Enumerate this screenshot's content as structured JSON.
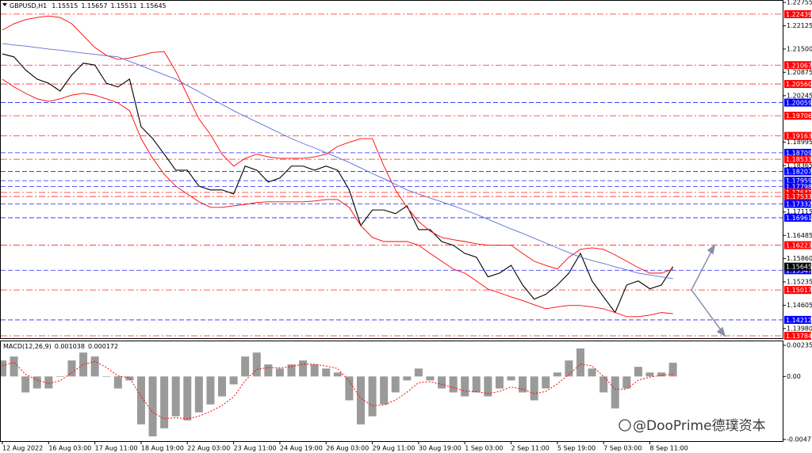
{
  "chart_data": [
    {
      "type": "line",
      "title": "GBPUSD,H1",
      "ohlc": {
        "open": 1.15515,
        "high": 1.15657,
        "low": 1.15511
      },
      "categories": [
        "12 Aug 2022",
        null,
        null,
        null,
        "16 Aug 03:00",
        null,
        null,
        null,
        "17 Aug 11:00",
        null,
        null,
        null,
        "18 Aug 19:00",
        null,
        null,
        null,
        "22 Aug 03:00",
        null,
        null,
        null,
        "23 Aug 11:00",
        null,
        null,
        null,
        "24 Aug 19:00",
        null,
        null,
        null,
        "26 Aug 03:00",
        null,
        null,
        null,
        "29 Aug 11:00",
        null,
        null,
        null,
        "30 Aug 19:00",
        null,
        null,
        null,
        "1 Sep 03:00",
        null,
        null,
        null,
        "2 Sep 11:00",
        null,
        null,
        null,
        "5 Sep 19:00",
        null,
        null,
        null,
        "7 Sep 03:00",
        null,
        null,
        null,
        "8 Sep 11:00",
        null,
        null
      ],
      "series": [
        {
          "color": "#000000",
          "values": [
            1.2137,
            1.2129,
            1.2094,
            1.2069,
            1.2058,
            1.2037,
            1.208,
            1.2112,
            1.2107,
            1.2058,
            1.2048,
            1.2069,
            1.1941,
            1.1909,
            1.1867,
            1.1824,
            1.1824,
            1.1781,
            1.1771,
            1.1771,
            1.176,
            1.1835,
            1.1824,
            1.1792,
            1.1803,
            1.1835,
            1.1835,
            1.1824,
            1.1835,
            1.1824,
            1.1771,
            1.1675,
            1.1717,
            1.1717,
            1.1707,
            1.1728,
            1.1664,
            1.1664,
            1.1632,
            1.1622,
            1.16,
            1.159,
            1.1537,
            1.1547,
            1.1568,
            1.1515,
            1.1477,
            1.149,
            1.1515,
            1.1547,
            1.16,
            1.1526,
            1.1483,
            1.1441,
            1.1515,
            1.1526,
            1.1505,
            1.1515,
            1.15645
          ]
        },
        {
          "color": "#ff0000",
          "values": [
            1.2201,
            1.2218,
            1.2229,
            1.2235,
            1.2239,
            1.2235,
            1.2218,
            1.2186,
            1.2154,
            1.2133,
            1.2122,
            1.2126,
            1.2133,
            1.2141,
            1.2143,
            1.209,
            1.2026,
            1.1962,
            1.192,
            1.1867,
            1.1835,
            1.1856,
            1.1867,
            1.186,
            1.1856,
            1.1856,
            1.1856,
            1.186,
            1.1867,
            1.1888,
            1.1899,
            1.1909,
            1.1909,
            1.1835,
            1.1771,
            1.1724,
            1.1686,
            1.166,
            1.1643,
            1.1637,
            1.1632,
            1.1626,
            1.1622,
            1.1622,
            1.1622,
            1.16,
            1.1579,
            1.1568,
            1.1558,
            1.159,
            1.1611,
            1.1615,
            1.1611,
            1.1596,
            1.1579,
            1.1562,
            1.1547,
            1.1547,
            1.1558
          ]
        },
        {
          "color": "#ff0000",
          "values": [
            1.2069,
            1.2048,
            1.2031,
            1.2016,
            1.2009,
            1.2016,
            1.2026,
            1.2031,
            1.2026,
            1.2016,
            1.2005,
            1.1984,
            1.1909,
            1.1856,
            1.1813,
            1.1781,
            1.176,
            1.1739,
            1.1724,
            1.1724,
            1.1728,
            1.1732,
            1.1737,
            1.1739,
            1.1739,
            1.1739,
            1.1739,
            1.1741,
            1.1745,
            1.1745,
            1.1724,
            1.1675,
            1.1643,
            1.1632,
            1.1632,
            1.1632,
            1.1622,
            1.16,
            1.1579,
            1.1558,
            1.1547,
            1.1526,
            1.1504,
            1.1494,
            1.1483,
            1.1473,
            1.1462,
            1.1451,
            1.1456,
            1.146,
            1.146,
            1.1456,
            1.1451,
            1.1441,
            1.143,
            1.143,
            1.1434,
            1.1441,
            1.1438
          ]
        },
        {
          "color": "#5b6fd6",
          "values": [
            1.2165,
            1.2161,
            1.2158,
            1.2154,
            1.215,
            1.2147,
            1.2143,
            1.2139,
            1.2136,
            1.2132,
            1.2129,
            1.2117,
            1.2105,
            1.2093,
            1.2081,
            1.2069,
            1.2052,
            1.2035,
            1.2018,
            1.2001,
            1.1984,
            1.1969,
            1.1954,
            1.1939,
            1.1924,
            1.1909,
            1.1896,
            1.1884,
            1.1871,
            1.1858,
            1.1845,
            1.183,
            1.1815,
            1.1801,
            1.1786,
            1.1771,
            1.176,
            1.1749,
            1.1739,
            1.1728,
            1.1717,
            1.1705,
            1.1692,
            1.1679,
            1.1666,
            1.1654,
            1.1641,
            1.1628,
            1.1615,
            1.1602,
            1.159,
            1.1581,
            1.1573,
            1.1564,
            1.1556,
            1.1547,
            1.1542,
            1.1537,
            1.1532
          ]
        }
      ],
      "levels": [
        {
          "value": 1.22439,
          "color": "#ff0000"
        },
        {
          "value": 1.21067,
          "color": "#ff0000"
        },
        {
          "value": 1.2056,
          "label": "1.20560",
          "color": "#ff0000"
        },
        {
          "value": 1.20059,
          "color": "#0000ff"
        },
        {
          "value": 1.19706,
          "color": "#ff0000"
        },
        {
          "value": 1.19163,
          "color": "#ff0000"
        },
        {
          "value": 1.18709,
          "color": "#0000ff"
        },
        {
          "value": 1.18533,
          "color": "#ff0000"
        },
        {
          "value": 1.18207,
          "color": "#0000ff"
        },
        {
          "value": 1.17959,
          "color": "#0000ff"
        },
        {
          "value": 1.17798,
          "color": "#0000ff"
        },
        {
          "value": 1.17641,
          "color": "#ff0000"
        },
        {
          "value": 1.17533,
          "color": "#ff0000"
        },
        {
          "value": 1.17332,
          "color": "#0000ff"
        },
        {
          "value": 1.16961,
          "color": "#0000ff"
        },
        {
          "value": 1.16223,
          "color": "#ff0000"
        },
        {
          "value": 1.15547,
          "color": "#0000ff"
        },
        {
          "value": 1.15017,
          "color": "#ff0000"
        },
        {
          "value": 1.14212,
          "color": "#0000ff"
        },
        {
          "value": 1.13784,
          "color": "#ff0000"
        }
      ],
      "ylim": [
        1.1372,
        1.2282
      ],
      "yticks": [
        1.22755,
        1.22125,
        {
          "value": 1.215,
          "label": "1.21500"
        },
        1.20875,
        1.20245,
        1.18995,
        1.18365,
        1.17115,
        1.16485,
        {
          "value": 1.1586,
          "label": "1.15860"
        },
        1.15235,
        1.14605,
        {
          "value": 1.1398,
          "label": "1.13980"
        }
      ]
    },
    {
      "type": "bar",
      "title": "MACD(12,26,9)",
      "series": [
        {
          "type": "bar",
          "color": "#9a9a9a",
          "values": [
            0.00121,
            0.00151,
            -0.00121,
            -0.00091,
            -0.00091,
            0,
            0.00121,
            0.00181,
            0.00151,
            0,
            -0.00091,
            -0.0003,
            -0.00363,
            -0.00454,
            -0.00393,
            -0.00302,
            -0.00333,
            -0.00272,
            -0.00212,
            -0.00151,
            -0.0006,
            0.00151,
            0.00181,
            0.00091,
            0.0006,
            0.00091,
            0.00121,
            0.00091,
            0.0006,
            0.0003,
            -0.00181,
            -0.00363,
            -0.00302,
            -0.00212,
            -0.00121,
            -0.0003,
            0.0006,
            -0.0003,
            -0.00091,
            -0.00121,
            -0.00151,
            -0.00121,
            -0.00151,
            -0.00091,
            -0.0003,
            -0.00121,
            -0.00181,
            -0.00091,
            0.0003,
            0.00121,
            0.00212,
            0.0006,
            -0.00121,
            -0.00242,
            -0.00091,
            0.00073,
            0.0003,
            0.0003,
            0.001038
          ]
        },
        {
          "type": "line",
          "color": "#ff0000",
          "values": [
            0.0008,
            0.00108,
            0.00016,
            -0.00027,
            -0.00053,
            -0.00032,
            0.00029,
            0.0009,
            0.00114,
            0.00068,
            4e-05,
            -0.0001,
            -0.00151,
            -0.00272,
            -0.0032,
            -0.00313,
            -0.00321,
            -0.00301,
            -0.00265,
            -0.0022,
            -0.00156,
            -0.00033,
            0.00053,
            0.00068,
            0.00065,
            0.00075,
            0.00093,
            0.00092,
            0.00079,
            0.0006,
            -0.00036,
            -0.00167,
            -0.00221,
            -0.00217,
            -0.00179,
            -0.00119,
            -0.00047,
            -0.0004,
            -0.0006,
            -0.00084,
            -0.00111,
            -0.00115,
            -0.00129,
            -0.00114,
            -0.0008,
            -0.00096,
            -0.0013,
            -0.00114,
            -0.00056,
            0.00015,
            0.00094,
            0.0008,
            0,
            -0.00097,
            -0.00095,
            -0.00028,
            -5e-05,
            9e-05,
            0.000172
          ]
        }
      ],
      "ylim": [
        -0.0049,
        0.00266
      ],
      "yticks": [
        0.002359,
        {
          "value": 0,
          "label": "0.00"
        },
        -0.004776
      ]
    }
  ],
  "watermark": "@DooPrime德璞资本"
}
